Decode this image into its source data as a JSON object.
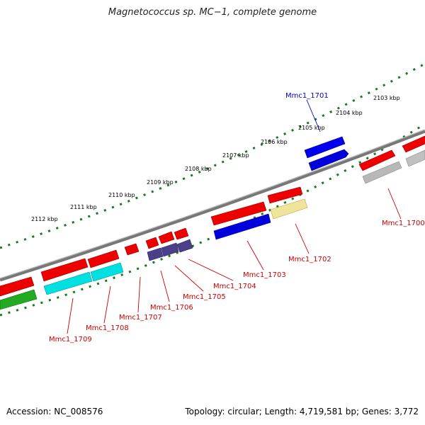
{
  "title": "Magnetococcus sp. MC−1, complete genome",
  "footer": {
    "accession": "Accession: NC_008576",
    "stats": "Topology: circular; Length: 4,719,581 bp; Genes: 3,772"
  },
  "colors": {
    "backbone": "#808080",
    "tick": "#1a7a1a",
    "label_red": "#cc0000",
    "label_blue": "#0000cc"
  },
  "kbp_labels": [
    "2103 kbp",
    "2104 kbp",
    "2105 kbp",
    "2106 kbp",
    "2107 kbp",
    "2108 kbp",
    "2109 kbp",
    "2110 kbp",
    "2111 kbp",
    "2112 kbp"
  ],
  "genes": [
    {
      "label": "Mmc1_1700",
      "color": "#cc0000",
      "fill": "#b0b0b0"
    },
    {
      "label": "Mmc1_1701",
      "color": "#0000cc",
      "fill": "#0000ee"
    },
    {
      "label": "Mmc1_1702",
      "color": "#cc0000",
      "fill": "#efe49a"
    },
    {
      "label": "Mmc1_1703",
      "color": "#cc0000",
      "fill": "#0000dd"
    },
    {
      "label": "Mmc1_1704",
      "color": "#cc0000",
      "fill": "#4b3f8a"
    },
    {
      "label": "Mmc1_1705",
      "color": "#cc0000",
      "fill": "#4b3f8a"
    },
    {
      "label": "Mmc1_1706",
      "color": "#cc0000",
      "fill": "#4b3f8a"
    },
    {
      "label": "Mmc1_1707",
      "color": "#cc0000",
      "fill": "#ee0000"
    },
    {
      "label": "Mmc1_1708",
      "color": "#cc0000",
      "fill": "#00e0e0"
    },
    {
      "label": "Mmc1_1709",
      "color": "#cc0000",
      "fill": "#22aa22"
    }
  ]
}
